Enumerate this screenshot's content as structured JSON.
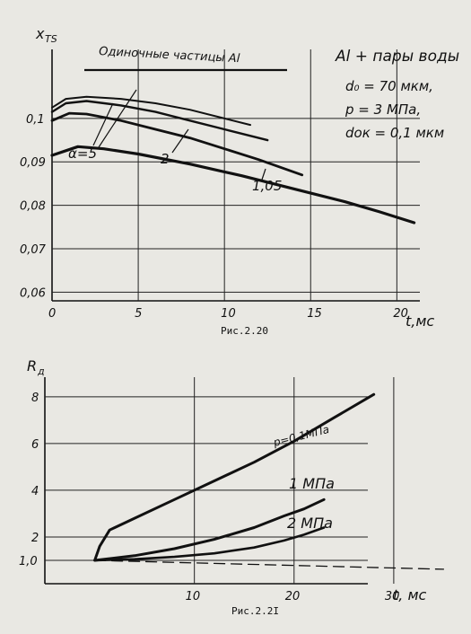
{
  "figures": [
    {
      "caption": "Рис.2.20"
    },
    {
      "caption": "Рис.2.2I"
    }
  ],
  "chart_data": [
    {
      "type": "line",
      "ylabel": "x",
      "ylabel_sub": "TS",
      "xlabel": "t,мс",
      "xlim": [
        0,
        23
      ],
      "ylim": [
        0.058,
        0.119
      ],
      "x_ticks": [
        0,
        5,
        10,
        15,
        20
      ],
      "x_tick_labels": [
        "0",
        "5",
        "10",
        "15",
        "20"
      ],
      "y_ticks": [
        0.06,
        0.07,
        0.08,
        0.09,
        0.1
      ],
      "y_tick_labels": [
        "0,06",
        "0,07",
        "0,08",
        "0,09",
        "0,1"
      ],
      "grid": true,
      "legend_text": "Одиночные частицы Al",
      "conditions": [
        "Al + пары воды",
        "d₀ = 70 мкм,",
        "p = 3 МПа,",
        "dок = 0,1 мкм"
      ],
      "series": [
        {
          "name": "Одиночные частицы Al",
          "x": [
            0,
            0.8,
            2,
            4,
            6,
            8,
            10,
            11.5
          ],
          "y": [
            0.1025,
            0.1045,
            0.105,
            0.1045,
            0.1035,
            0.102,
            0.1,
            0.0985
          ],
          "stroke": 2
        },
        {
          "x": [
            0,
            0.8,
            2,
            4,
            6,
            8,
            10,
            12.5
          ],
          "y": [
            0.1015,
            0.1035,
            0.104,
            0.103,
            0.1015,
            0.0995,
            0.0975,
            0.095
          ],
          "stroke": 2.4
        },
        {
          "x": [
            0,
            1,
            2,
            4,
            6,
            8,
            10,
            12,
            14.5
          ],
          "y": [
            0.0995,
            0.1012,
            0.101,
            0.0995,
            0.0975,
            0.0955,
            0.093,
            0.0905,
            0.087
          ],
          "stroke": 2.8
        },
        {
          "x": [
            0,
            1.5,
            3,
            5,
            8,
            11,
            14,
            17,
            19,
            21
          ],
          "y": [
            0.0915,
            0.0935,
            0.093,
            0.0918,
            0.0895,
            0.0868,
            0.0838,
            0.0808,
            0.0785,
            0.076
          ],
          "stroke": 3.2
        }
      ],
      "annotations": [
        "α=5",
        "2",
        "1,05"
      ]
    },
    {
      "type": "line",
      "ylabel": "R",
      "ylabel_sub": "д",
      "xlabel": "t, мс",
      "xlim": [
        -5,
        35.5
      ],
      "ylim": [
        0,
        9.3
      ],
      "x_ticks": [
        10,
        20,
        30
      ],
      "x_tick_labels": [
        "10",
        "20",
        "30"
      ],
      "y_ticks": [
        1,
        2,
        4,
        6,
        8
      ],
      "y_tick_labels": [
        "1,0",
        "2",
        "4",
        "6",
        "8"
      ],
      "grid": true,
      "series": [
        {
          "name": "p=0,1МПа",
          "x": [
            0,
            0.5,
            1.5,
            4,
            8,
            12,
            16,
            20,
            24,
            28
          ],
          "y": [
            1,
            1.6,
            2.3,
            2.8,
            3.6,
            4.4,
            5.2,
            6.1,
            7.1,
            8.1
          ],
          "stroke": 3,
          "dash": false
        },
        {
          "name": "1 МПа",
          "x": [
            0,
            4,
            8,
            12,
            16,
            19,
            21,
            23
          ],
          "y": [
            1,
            1.2,
            1.5,
            1.9,
            2.4,
            2.9,
            3.2,
            3.6
          ],
          "stroke": 3,
          "dash": false
        },
        {
          "name": "2 МПа",
          "x": [
            0,
            4,
            8,
            12,
            16,
            19,
            21,
            23
          ],
          "y": [
            1,
            1.05,
            1.15,
            1.3,
            1.55,
            1.85,
            2.1,
            2.4
          ],
          "stroke": 2.6,
          "dash": false
        },
        {
          "x": [
            0,
            35
          ],
          "y": [
            1.0,
            0.62
          ],
          "stroke": 1.3,
          "dash": true
        }
      ]
    }
  ]
}
